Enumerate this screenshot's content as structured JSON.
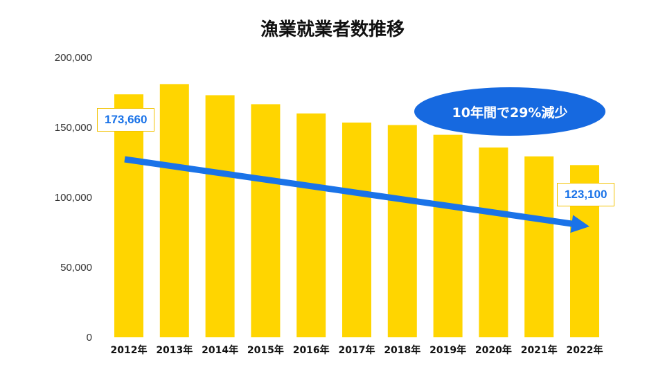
{
  "chart_data": {
    "type": "bar",
    "title": "漁業就業者数推移",
    "categories": [
      "2012年",
      "2013年",
      "2014年",
      "2015年",
      "2016年",
      "2017年",
      "2018年",
      "2019年",
      "2020年",
      "2021年",
      "2022年"
    ],
    "values": [
      173660,
      180990,
      173040,
      166610,
      160020,
      153490,
      151700,
      144740,
      135660,
      129320,
      123100
    ],
    "ylim": [
      0,
      200000
    ],
    "yticks": [
      "0",
      "50,000",
      "100,000",
      "150,000",
      "200,000"
    ],
    "bar_color": "#ffd500",
    "grid": false,
    "annotations": {
      "start_value": "173,660",
      "end_value": "123,100",
      "trend_note": "10年間で29%減少",
      "trend_color": "#1a73e8"
    }
  }
}
